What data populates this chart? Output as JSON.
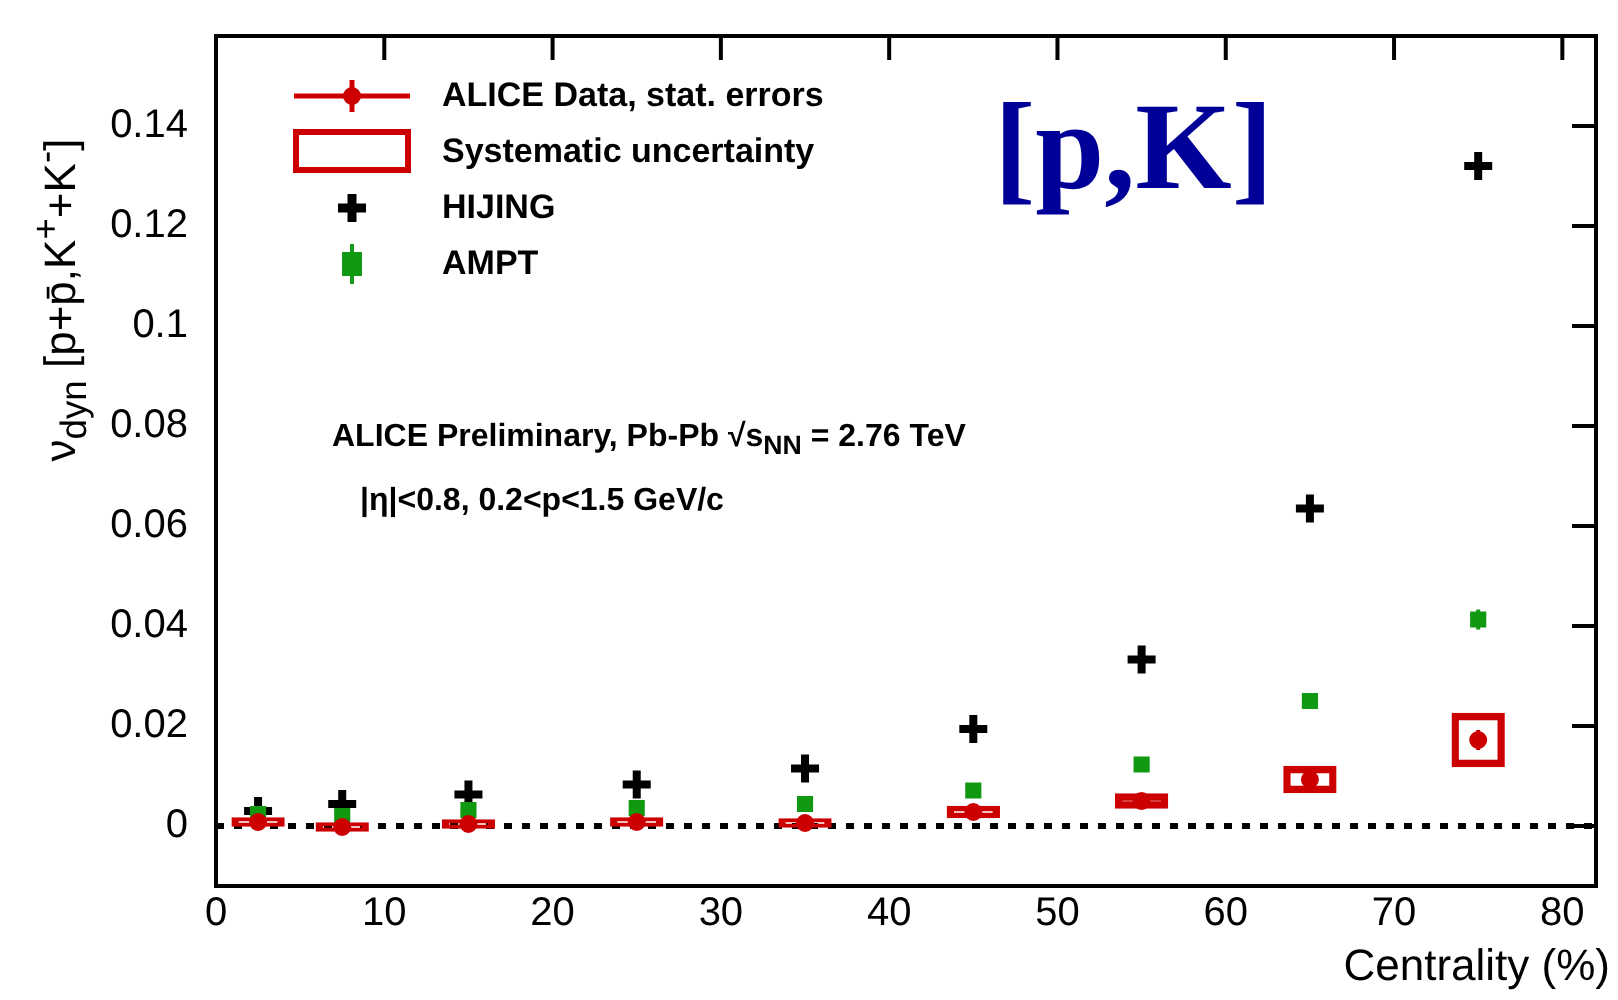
{
  "chart_data": {
    "type": "scatter",
    "xlabel": "Centrality (%)",
    "ylabel": "ν$_{dyn}$ [p+p̄,K$^{+}$+K$^{-}$]",
    "xlim": [
      0,
      82
    ],
    "ylim": [
      -0.012,
      0.158
    ],
    "xticks": [
      0,
      10,
      20,
      30,
      40,
      50,
      60,
      70,
      80
    ],
    "yticks": [
      0,
      0.02,
      0.04,
      0.06,
      0.08,
      {
        "value": 0.1,
        "label": "0.1"
      },
      0.12,
      0.14
    ],
    "grid": false,
    "legend": "top left",
    "series": [
      {
        "name": "Systematic uncertainty",
        "type": "bar",
        "color": "#cc0000",
        "x": [
          2.5,
          7.5,
          15,
          25,
          35,
          45,
          55,
          65,
          75
        ],
        "base": [
          0.0,
          -0.001,
          -0.0004,
          0.0,
          -0.0002,
          0.0017,
          0.0036,
          0.0067,
          0.0119
        ],
        "values": [
          0.0016,
          0.0016,
          0.0016,
          0.0016,
          0.0016,
          0.0022,
          0.0028,
          0.0052,
          0.0106
        ]
      },
      {
        "name": "ALICE Data, stat. errors",
        "color": "#cc0000",
        "marker": "circle",
        "x": [
          2.5,
          7.5,
          15,
          25,
          35,
          45,
          55,
          65,
          75
        ],
        "values": [
          0.0008,
          -0.0002,
          0.0004,
          0.0008,
          0.0006,
          0.0028,
          0.005,
          0.0093,
          0.0172
        ],
        "errors": [
          null,
          null,
          null,
          null,
          null,
          null,
          null,
          null,
          0.002
        ]
      },
      {
        "name": "HIJING",
        "color": "#000000",
        "marker": "cross",
        "x": [
          2.5,
          7.5,
          15,
          25,
          35,
          45,
          55,
          65,
          75
        ],
        "values": [
          0.003,
          0.0044,
          0.0063,
          0.0083,
          0.0115,
          0.0194,
          0.0333,
          0.0635,
          0.132
        ]
      },
      {
        "name": "AMPT",
        "color": "#119911",
        "marker": "square",
        "x": [
          2.5,
          7.5,
          15,
          25,
          35,
          45,
          55,
          65,
          75
        ],
        "values": [
          0.0024,
          0.002,
          0.0032,
          0.0036,
          0.0044,
          0.0071,
          0.0123,
          0.025,
          0.0413
        ],
        "errors": [
          null,
          null,
          null,
          null,
          null,
          null,
          null,
          null,
          0.002
        ]
      }
    ],
    "ref_lines": [
      {
        "axis": "y",
        "value": 0,
        "color": "#000000",
        "line_style": "dotted"
      }
    ],
    "annotations": [
      "[p,K]",
      "ALICE Preliminary, Pb-Pb √s$_{NN}$ = 2.76 TeV",
      "|η|<0.8, 0.2<p<1.5 GeV/c"
    ]
  }
}
